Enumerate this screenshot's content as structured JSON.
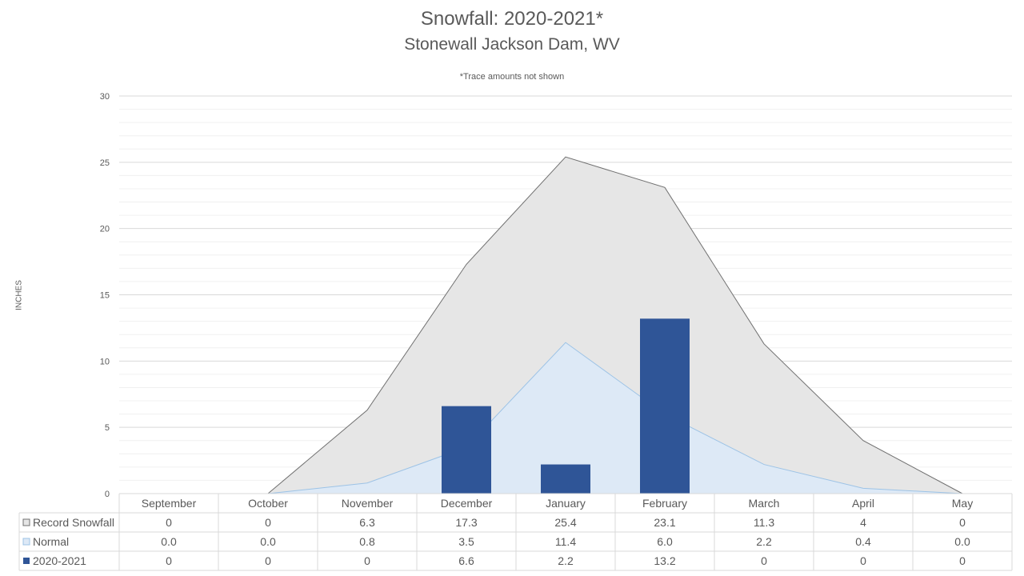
{
  "chart_data": {
    "type": "bar",
    "title": "Snowfall: 2020-2021*",
    "subtitle": "Stonewall Jackson Dam, WV",
    "note": "*Trace amounts not shown",
    "ylabel": "INCHES",
    "ylim": [
      0,
      30
    ],
    "yticks": [
      0,
      5,
      10,
      15,
      20,
      25,
      30
    ],
    "categories": [
      "September",
      "October",
      "November",
      "December",
      "January",
      "February",
      "March",
      "April",
      "May"
    ],
    "series": [
      {
        "name": "Record Snowfall",
        "kind": "area",
        "color": "#e6e6e6",
        "stroke": "#707070",
        "values": [
          0,
          0,
          6.3,
          17.3,
          25.4,
          23.1,
          11.3,
          4,
          0
        ],
        "labels": [
          "0",
          "0",
          "6.3",
          "17.3",
          "25.4",
          "23.1",
          "11.3",
          "4",
          "0"
        ]
      },
      {
        "name": "Normal",
        "kind": "area",
        "color": "#dde9f6",
        "stroke": "#9dc3e6",
        "values": [
          0.0,
          0.0,
          0.8,
          3.5,
          11.4,
          6.0,
          2.2,
          0.4,
          0.0
        ],
        "labels": [
          "0.0",
          "0.0",
          "0.8",
          "3.5",
          "11.4",
          "6.0",
          "2.2",
          "0.4",
          "0.0"
        ]
      },
      {
        "name": "2020-2021",
        "kind": "bar",
        "color": "#2f5597",
        "values": [
          0,
          0,
          0,
          6.6,
          2.2,
          13.2,
          0,
          0,
          0
        ],
        "labels": [
          "0",
          "0",
          "0",
          "6.6",
          "2.2",
          "13.2",
          "0",
          "0",
          "0"
        ]
      }
    ],
    "grid": true,
    "legend": "data-table"
  }
}
